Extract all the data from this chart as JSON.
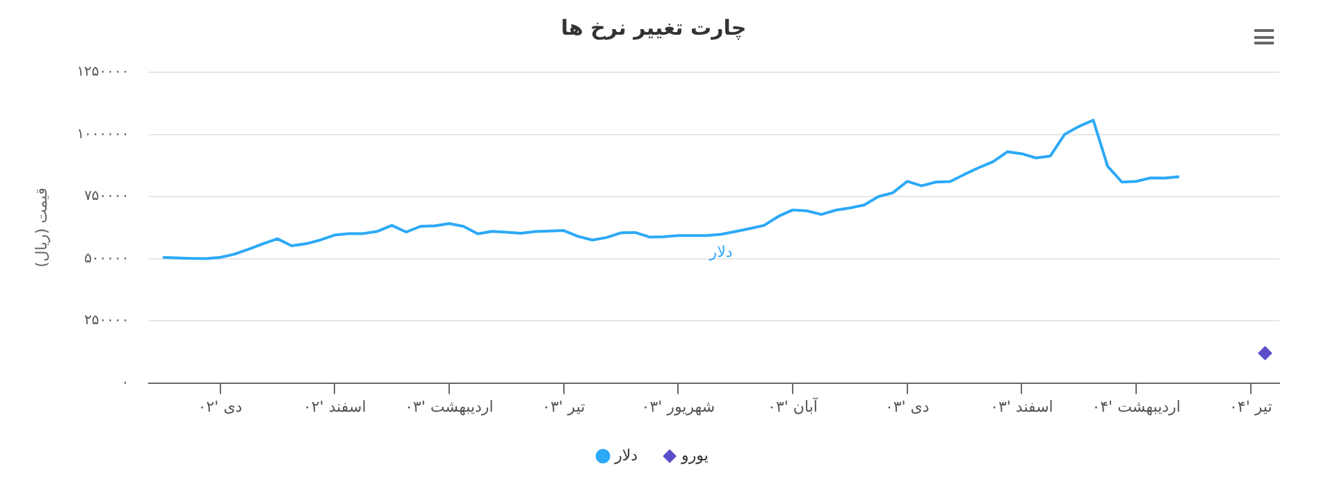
{
  "chart_data": {
    "type": "line",
    "title": "چارت تغییر نرخ ها",
    "ylabel": "قیمت (ریال)",
    "categories": [
      null,
      null,
      null,
      null,
      null,
      "دی '۰۲",
      null,
      null,
      null,
      null,
      null,
      null,
      null,
      "اسفند '۰۲",
      null,
      null,
      null,
      null,
      null,
      null,
      null,
      "اردیبهشت '۰۳",
      null,
      null,
      null,
      null,
      null,
      null,
      null,
      "تیر '۰۳",
      null,
      null,
      null,
      null,
      null,
      null,
      null,
      "شهریور '۰۳",
      null,
      null,
      null,
      null,
      null,
      null,
      null,
      "آبان '۰۳",
      null,
      null,
      null,
      null,
      null,
      null,
      null,
      "دی '۰۳",
      null,
      null,
      null,
      null,
      null,
      null,
      null,
      "اسفند '۰۳",
      null,
      null,
      null,
      null,
      null,
      null,
      null,
      "اردیبهشت '۰۴",
      null,
      null,
      null,
      null,
      null,
      null,
      null,
      "تیر '۰۴",
      null,
      null
    ],
    "ylim": [
      0,
      1250000
    ],
    "yticks": [
      {
        "value": 0,
        "label": "۰"
      },
      {
        "value": 250000,
        "label": "۲۵۰۰۰۰"
      },
      {
        "value": 500000,
        "label": "۵۰۰۰۰۰"
      },
      {
        "value": 750000,
        "label": "۷۵۰۰۰۰"
      },
      {
        "value": 1000000,
        "label": "۱۰۰۰۰۰۰"
      },
      {
        "value": 1250000,
        "label": "۱۲۵۰۰۰۰"
      }
    ],
    "grid": "y",
    "legend": "bottom",
    "series": [
      {
        "name": "دلار",
        "color": "#2ca9f7",
        "marker": "none",
        "values": [
          null,
          505000,
          503000,
          501000,
          500000,
          505000,
          518000,
          538000,
          560000,
          580000,
          552000,
          560000,
          575000,
          595000,
          601000,
          601000,
          610000,
          634000,
          607000,
          630000,
          632000,
          641000,
          630000,
          600000,
          610000,
          606000,
          602000,
          609000,
          611000,
          613000,
          590000,
          575000,
          585000,
          604000,
          605000,
          587000,
          588000,
          593000,
          593000,
          593000,
          598000,
          609000,
          621000,
          634000,
          670000,
          696000,
          692000,
          678000,
          695000,
          704000,
          716000,
          750000,
          765000,
          811000,
          793000,
          808000,
          810000,
          839000,
          866000,
          890000,
          930000,
          922000,
          905000,
          913000,
          1000000,
          1032000,
          1057000,
          872000,
          808000,
          811000,
          825000,
          824000,
          830000,
          null,
          null,
          null,
          null,
          null,
          null,
          null
        ]
      },
      {
        "name": "یورو",
        "color": "#5b4fc9",
        "type": "scatter",
        "marker": "diamond",
        "values": [
          null,
          null,
          null,
          null,
          null,
          null,
          null,
          null,
          null,
          null,
          null,
          null,
          null,
          null,
          null,
          null,
          null,
          null,
          null,
          null,
          null,
          null,
          null,
          null,
          null,
          null,
          null,
          null,
          null,
          null,
          null,
          null,
          null,
          null,
          null,
          null,
          null,
          null,
          null,
          null,
          null,
          null,
          null,
          null,
          null,
          null,
          null,
          null,
          null,
          null,
          null,
          null,
          null,
          null,
          null,
          null,
          null,
          null,
          null,
          null,
          null,
          null,
          null,
          null,
          null,
          null,
          null,
          null,
          null,
          null,
          null,
          null,
          null,
          null,
          null,
          null,
          null,
          null,
          120000,
          null
        ]
      }
    ]
  }
}
